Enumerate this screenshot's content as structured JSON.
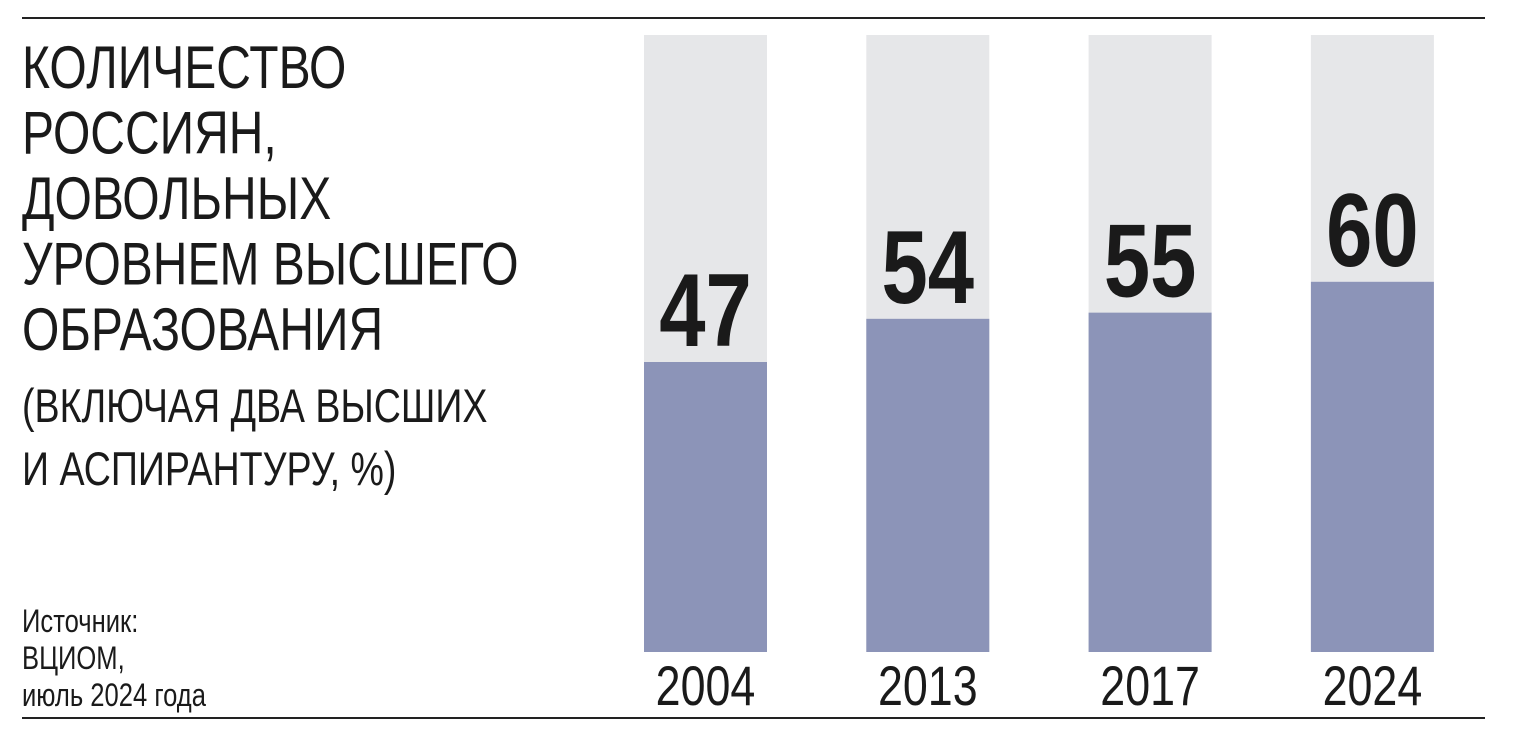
{
  "chart_data": {
    "type": "bar",
    "title_lines": [
      "КОЛИЧЕСТВО",
      "РОССИЯН,",
      "ДОВОЛЬНЫХ",
      "УРОВНЕМ ВЫСШЕГО",
      "ОБРАЗОВАНИЯ"
    ],
    "subtitle_lines": [
      "(ВКЛЮЧАЯ ДВА ВЫСШИХ",
      "И АСПИРАНТУРУ, %)"
    ],
    "source_lines": [
      "Источник:",
      "ВЦИОМ,",
      "июль 2024 года"
    ],
    "categories": [
      "2004",
      "2013",
      "2017",
      "2024"
    ],
    "values": [
      47,
      54,
      55,
      60
    ],
    "color": "#8c94b8",
    "background_color": "#e6e7e9",
    "ylim": [
      0,
      100
    ]
  }
}
